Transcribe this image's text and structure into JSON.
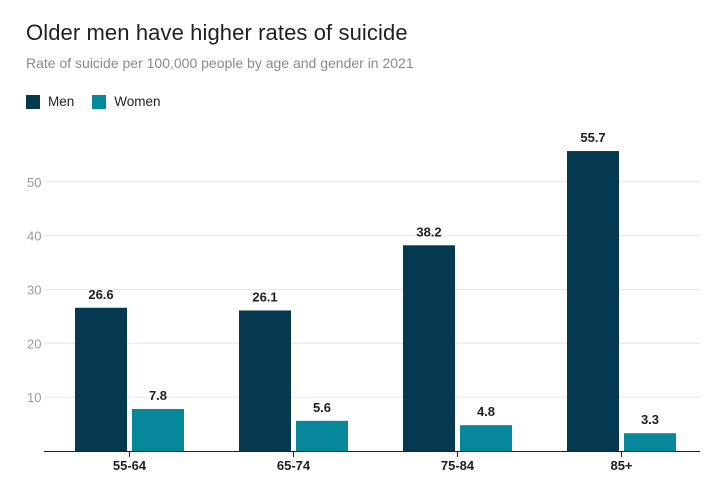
{
  "header": {
    "title": "Older men have higher rates of suicide",
    "subtitle": "Rate of suicide per 100,000 people by age and gender in 2021"
  },
  "legend": {
    "items": [
      {
        "label": "Men",
        "color": "#04394f"
      },
      {
        "label": "Women",
        "color": "#06879a"
      }
    ]
  },
  "chart_data": {
    "type": "bar",
    "title": "Older men have higher rates of suicide",
    "subtitle": "Rate of suicide per 100,000 people by age and gender in 2021",
    "categories": [
      "55-64",
      "65-74",
      "75-84",
      "85+"
    ],
    "series": [
      {
        "name": "Men",
        "color": "#04394f",
        "values": [
          26.6,
          26.1,
          38.2,
          55.7
        ]
      },
      {
        "name": "Women",
        "color": "#06879a",
        "values": [
          7.8,
          5.6,
          4.8,
          3.3
        ]
      }
    ],
    "yticks": [
      10,
      20,
      30,
      40,
      50
    ],
    "ylim": [
      0,
      57
    ],
    "xlabel": "",
    "ylabel": "",
    "grid": true,
    "legend_position": "top-left"
  }
}
